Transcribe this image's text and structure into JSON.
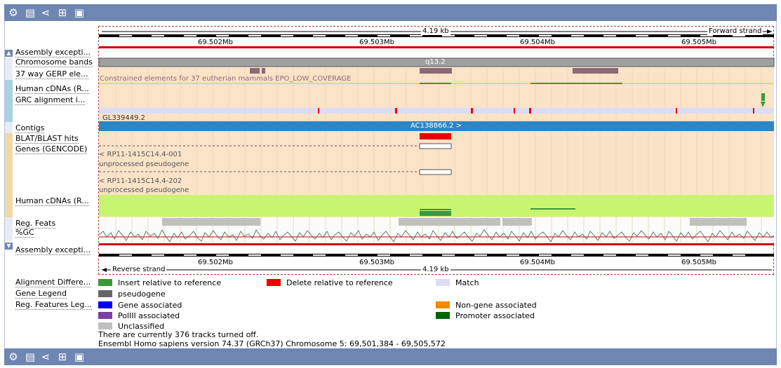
{
  "toolbar": {
    "icons": [
      "gear-icon",
      "export-icon",
      "share-icon",
      "resize-icon",
      "image-icon"
    ]
  },
  "ruler": {
    "length_label": "4.19 kb",
    "forward_label": "Forward strand",
    "reverse_label": "Reverse strand",
    "ticks": [
      "69.502Mb",
      "69.503Mb",
      "69.504Mb",
      "69.505Mb"
    ]
  },
  "tracks": [
    "Assembly excepti...",
    "Chromosome bands",
    "37 way GERP ele...",
    "Human cDNAs (R...",
    "GRC alignment i...",
    "Contigs",
    "BLAT/BLAST hits",
    "Genes (GENCODE)",
    "Human cDNAs (R...",
    "Reg. Feats",
    "%GC",
    "Assembly excepti..."
  ],
  "band_label": "q13.2",
  "gerp_text": "Constrained elements for 37 eutherian mammals EPO_LOW_COVERAGE",
  "grc_label": "GL339449.2",
  "contig_label": "AC138866.2 >",
  "genes": [
    {
      "name": "< RP11-1415C14.4-001",
      "type": "unprocessed pseudogene"
    },
    {
      "name": "< RP11-1415C14.4-202",
      "type": "unprocessed pseudogene"
    }
  ],
  "legends": {
    "alignment": {
      "title": "Alignment Differe...",
      "items": [
        {
          "label": "Insert relative to reference",
          "color": "#3a9a3a"
        },
        {
          "label": "Delete relative to reference",
          "color": "#ee0000"
        },
        {
          "label": "Match",
          "color": "#dcdcf5"
        }
      ]
    },
    "gene": {
      "title": "Gene Legend",
      "items": [
        {
          "label": "pseudogene",
          "color": "#666666"
        }
      ]
    },
    "reg": {
      "title": "Reg. Features Leg...",
      "items": [
        {
          "label": "Gene associated",
          "color": "#0000ee"
        },
        {
          "label": "Non-gene associated",
          "color": "#f58a00"
        },
        {
          "label": "PolIII associated",
          "color": "#7b3fa8"
        },
        {
          "label": "Promoter associated",
          "color": "#006400"
        },
        {
          "label": "Unclassified",
          "color": "#c0c0c0"
        }
      ]
    }
  },
  "footer": {
    "tracks_off": "There are currently 376 tracks turned off.",
    "version": "Ensembl Homo sapiens version 74.37 (GRCh37) Chromosome 5: 69,501,384 - 69,505,572"
  }
}
